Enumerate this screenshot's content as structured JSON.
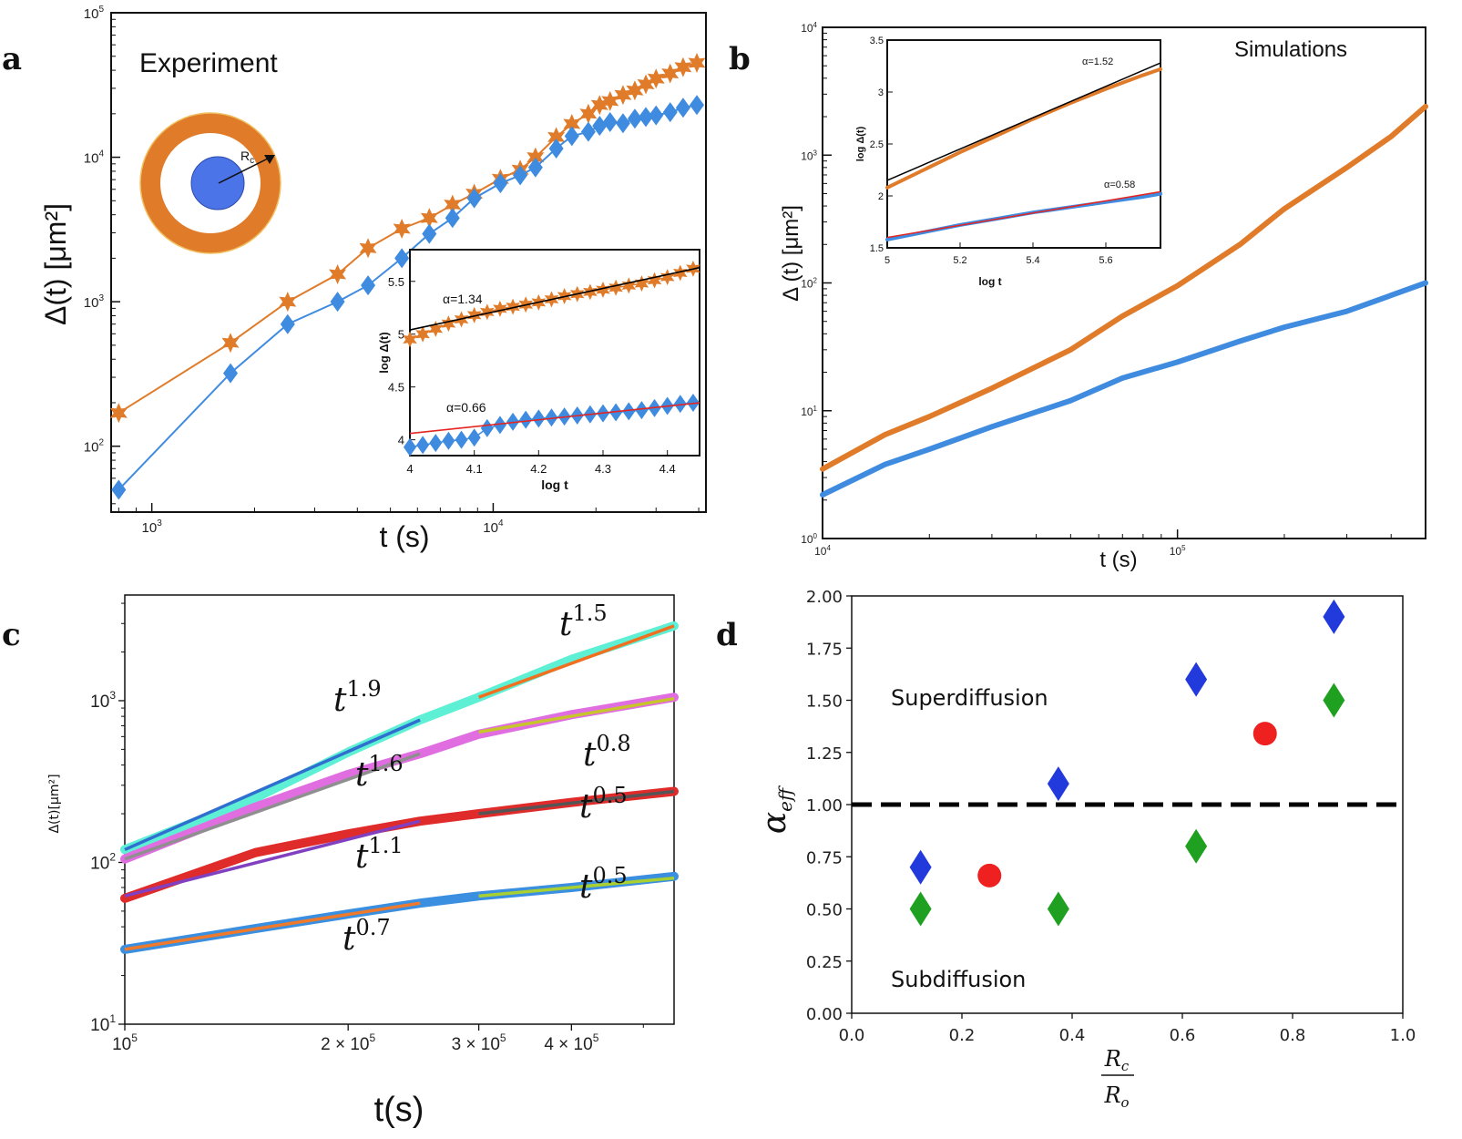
{
  "colors": {
    "orange": "#e07b2a",
    "blue": "#3f8be0",
    "black": "#000000",
    "red": "#e52420",
    "cyan": "#5ef0d5",
    "pink": "#e06ee0",
    "dred": "#e02b2b",
    "steel": "#3b8fe0",
    "diamond_blue": "#2239dc",
    "diamond_green": "#20a020",
    "dot_red": "#ee2020"
  },
  "panels": [
    {
      "letter": "a",
      "label": "Experiment",
      "xlabel": "t (s)",
      "ylabel": "Δ(t) [μm²]",
      "xticks": [
        {
          "v": 1000,
          "base": "10",
          "exp": "3"
        },
        {
          "v": 10000,
          "base": "10",
          "exp": "4"
        }
      ],
      "yticks": [
        {
          "v": 100,
          "base": "10",
          "exp": "2"
        },
        {
          "v": 1000,
          "base": "10",
          "exp": "3"
        },
        {
          "v": 10000,
          "base": "10",
          "exp": "4"
        },
        {
          "v": 100000,
          "base": "10",
          "exp": "5"
        }
      ],
      "schematic_label": "Rc",
      "inset": {
        "xlabel": "log t",
        "ylabel": "log Δ(t)",
        "xticks": [
          "4",
          "4.1",
          "4.2",
          "4.3",
          "4.4"
        ],
        "yticks": [
          "4",
          "4.5",
          "5",
          "5.5"
        ],
        "fit_labels": [
          "α=1.34",
          "α=0.66"
        ]
      }
    },
    {
      "letter": "b",
      "label": "Simulations",
      "xlabel": "t (s)",
      "ylabel": "Δ (t) [μm²]",
      "xticks": [
        {
          "v": 10000,
          "base": "10",
          "exp": "4"
        },
        {
          "v": 100000,
          "base": "10",
          "exp": "5"
        }
      ],
      "yticks": [
        {
          "v": 1,
          "base": "10",
          "exp": "0"
        },
        {
          "v": 10,
          "base": "10",
          "exp": "1"
        },
        {
          "v": 100,
          "base": "10",
          "exp": "2"
        },
        {
          "v": 1000,
          "base": "10",
          "exp": "3"
        },
        {
          "v": 10000,
          "base": "10",
          "exp": "4"
        }
      ],
      "inset": {
        "xlabel": "log t",
        "ylabel": "log Δ(t)",
        "xticks": [
          "5",
          "5.2",
          "5.4",
          "5.6"
        ],
        "yticks": [
          "1.5",
          "2",
          "2.5",
          "3",
          "3.5"
        ],
        "fit_labels": [
          "α=1.52",
          "α=0.58"
        ]
      }
    },
    {
      "letter": "c",
      "xlabel": "t(s)",
      "ylabel": "Δ(t)[μm²]",
      "xticks": [
        {
          "v": 100000,
          "text": "10",
          "exp": "5"
        },
        {
          "v": 200000,
          "text": "2 × 10",
          "exp": "5"
        },
        {
          "v": 300000,
          "text": "3 × 10",
          "exp": "5"
        },
        {
          "v": 400000,
          "text": "4 × 10",
          "exp": "5"
        }
      ],
      "yticks": [
        {
          "v": 10,
          "base": "10",
          "exp": "1"
        },
        {
          "v": 100,
          "base": "10",
          "exp": "2"
        },
        {
          "v": 1000,
          "base": "10",
          "exp": "3"
        }
      ],
      "annotations": [
        {
          "base": "t",
          "exp": "1.5"
        },
        {
          "base": "t",
          "exp": "1.9"
        },
        {
          "base": "t",
          "exp": "0.8"
        },
        {
          "base": "t",
          "exp": "1.6"
        },
        {
          "base": "t",
          "exp": "0.5"
        },
        {
          "base": "t",
          "exp": "1.1"
        },
        {
          "base": "t",
          "exp": "0.5"
        },
        {
          "base": "t",
          "exp": "0.7"
        }
      ]
    },
    {
      "letter": "d",
      "ylabel": "α",
      "ylabel_sub": "eff",
      "xlabel_num": "R",
      "xlabel_num_sub": "c",
      "xlabel_den": "R",
      "xlabel_den_sub": "o",
      "xticks": [
        "0.0",
        "0.2",
        "0.4",
        "0.6",
        "0.8",
        "1.0"
      ],
      "yticks": [
        "0.00",
        "0.25",
        "0.50",
        "0.75",
        "1.00",
        "1.25",
        "1.50",
        "1.75",
        "2.00"
      ],
      "region_labels": [
        "Superdiffusion",
        "Subdiffusion"
      ]
    }
  ],
  "chart_data": [
    {
      "type": "line",
      "panel": "a",
      "title": "Experiment",
      "xlabel": "t (s)",
      "ylabel": "Δ(t) [μm²]",
      "xscale": "log",
      "yscale": "log",
      "xlim": [
        760,
        42000
      ],
      "ylim": [
        35,
        100000
      ],
      "series": [
        {
          "color": "#e07b2a",
          "marker": "star",
          "x": [
            800,
            1700,
            2500,
            3500,
            4300,
            5400,
            6500,
            7600,
            8800,
            10500,
            12000,
            13300,
            15300,
            17000,
            19000,
            20500,
            22000,
            24000,
            26000,
            28000,
            30000,
            33000,
            36000,
            39500
          ],
          "y": [
            170,
            520,
            1000,
            1550,
            2350,
            3200,
            3800,
            4700,
            5600,
            7100,
            8200,
            10000,
            13800,
            17000,
            20000,
            23000,
            24500,
            27000,
            29000,
            32000,
            35000,
            38000,
            42000,
            45000
          ]
        },
        {
          "color": "#3f8be0",
          "marker": "diamond",
          "x": [
            800,
            1700,
            2500,
            3500,
            4300,
            5400,
            6500,
            7600,
            8800,
            10500,
            12000,
            13300,
            15300,
            17000,
            19000,
            20500,
            22000,
            24000,
            26000,
            28000,
            30000,
            33000,
            36000,
            39500
          ],
          "y": [
            50,
            320,
            700,
            1000,
            1300,
            2000,
            2950,
            3800,
            5200,
            6600,
            7500,
            8500,
            11500,
            14000,
            15000,
            16500,
            17500,
            17200,
            18500,
            19000,
            19500,
            20500,
            22000,
            23000
          ]
        }
      ],
      "inset": {
        "type": "line",
        "xlabel": "log t",
        "ylabel": "log Δ(t)",
        "xlim": [
          4.0,
          4.45
        ],
        "ylim": [
          3.85,
          5.8
        ],
        "series": [
          {
            "color": "#e07b2a",
            "marker": "star",
            "x": [
              4.0,
              4.02,
              4.04,
              4.06,
              4.08,
              4.1,
              4.12,
              4.14,
              4.16,
              4.18,
              4.2,
              4.22,
              4.24,
              4.26,
              4.28,
              4.3,
              4.32,
              4.34,
              4.36,
              4.38,
              4.4,
              4.42,
              4.44
            ],
            "y": [
              4.95,
              5.0,
              5.05,
              5.1,
              5.14,
              5.18,
              5.21,
              5.24,
              5.26,
              5.28,
              5.3,
              5.33,
              5.36,
              5.38,
              5.4,
              5.42,
              5.44,
              5.46,
              5.48,
              5.51,
              5.54,
              5.58,
              5.62
            ]
          },
          {
            "color": "#3f8be0",
            "marker": "diamond",
            "x": [
              4.0,
              4.02,
              4.04,
              4.06,
              4.08,
              4.1,
              4.12,
              4.14,
              4.16,
              4.18,
              4.2,
              4.22,
              4.24,
              4.26,
              4.28,
              4.3,
              4.32,
              4.34,
              4.36,
              4.38,
              4.4,
              4.42,
              4.44
            ],
            "y": [
              3.93,
              3.95,
              3.97,
              3.99,
              4.0,
              4.02,
              4.11,
              4.14,
              4.17,
              4.19,
              4.2,
              4.21,
              4.22,
              4.23,
              4.24,
              4.25,
              4.26,
              4.27,
              4.28,
              4.3,
              4.32,
              4.34,
              4.35
            ]
          }
        ],
        "fits": [
          {
            "label": "α=1.34",
            "color": "#000000",
            "x": [
              4.0,
              4.45
            ],
            "y": [
              5.04,
              5.63
            ]
          },
          {
            "label": "α=0.66",
            "color": "#e52420",
            "x": [
              4.0,
              4.45
            ],
            "y": [
              4.06,
              4.35
            ]
          }
        ]
      }
    },
    {
      "type": "line",
      "panel": "b",
      "title": "Simulations",
      "xlabel": "t (s)",
      "ylabel": "Δ (t) [μm²]",
      "xscale": "log",
      "yscale": "log",
      "xlim": [
        10000,
        500000
      ],
      "ylim": [
        1,
        10000
      ],
      "series": [
        {
          "color": "#e07b2a",
          "x": [
            10000,
            15000,
            20000,
            30000,
            50000,
            70000,
            100000,
            150000,
            200000,
            300000,
            400000,
            500000
          ],
          "y": [
            3.5,
            6.5,
            9,
            15,
            30,
            55,
            95,
            200,
            380,
            800,
            1400,
            2400
          ]
        },
        {
          "color": "#3f8be0",
          "x": [
            10000,
            15000,
            20000,
            30000,
            50000,
            70000,
            100000,
            150000,
            200000,
            300000,
            400000,
            500000
          ],
          "y": [
            2.2,
            3.8,
            5,
            7.5,
            12,
            18,
            24,
            35,
            45,
            60,
            80,
            100
          ]
        }
      ],
      "inset": {
        "type": "line",
        "xlabel": "log t",
        "ylabel": "log Δ(t)",
        "xlim": [
          5.0,
          5.75
        ],
        "ylim": [
          1.5,
          3.5
        ],
        "series": [
          {
            "color": "#e07b2a",
            "x": [
              5.0,
              5.1,
              5.2,
              5.3,
              5.4,
              5.5,
              5.6,
              5.7,
              5.75
            ],
            "y": [
              2.08,
              2.25,
              2.42,
              2.58,
              2.74,
              2.89,
              3.03,
              3.16,
              3.22
            ]
          },
          {
            "color": "#3f8be0",
            "x": [
              5.0,
              5.1,
              5.2,
              5.3,
              5.4,
              5.5,
              5.6,
              5.7,
              5.75
            ],
            "y": [
              1.58,
              1.65,
              1.72,
              1.78,
              1.84,
              1.89,
              1.94,
              1.99,
              2.02
            ]
          }
        ],
        "fits": [
          {
            "label": "α=1.52",
            "color": "#000000",
            "x": [
              5.0,
              5.75
            ],
            "y": [
              2.15,
              3.28
            ]
          },
          {
            "label": "α=0.58",
            "color": "#e52420",
            "x": [
              5.0,
              5.75
            ],
            "y": [
              1.6,
              2.04
            ]
          }
        ]
      }
    },
    {
      "type": "line",
      "panel": "c",
      "xlabel": "t(s)",
      "ylabel": "Δ(t)[μm²]",
      "xscale": "log",
      "yscale": "log",
      "xlim": [
        100000,
        550000
      ],
      "ylim": [
        10,
        4500
      ],
      "series": [
        {
          "color": "#5ef0d5",
          "width": 10,
          "x": [
            100000,
            150000,
            200000,
            250000,
            300000,
            400000,
            550000
          ],
          "y": [
            120,
            250,
            480,
            760,
            1050,
            1800,
            2900
          ]
        },
        {
          "color": "#e06ee0",
          "width": 10,
          "x": [
            100000,
            150000,
            200000,
            250000,
            300000,
            400000,
            550000
          ],
          "y": [
            105,
            220,
            350,
            470,
            620,
            820,
            1050
          ]
        },
        {
          "color": "#e02b2b",
          "width": 10,
          "x": [
            100000,
            150000,
            200000,
            250000,
            300000,
            400000,
            550000
          ],
          "y": [
            60,
            115,
            150,
            180,
            200,
            235,
            275
          ]
        },
        {
          "color": "#3b8fe0",
          "width": 10,
          "x": [
            100000,
            150000,
            200000,
            250000,
            300000,
            400000,
            550000
          ],
          "y": [
            29,
            39,
            48,
            56,
            62,
            70,
            82
          ]
        }
      ],
      "fits": [
        {
          "label": "t^1.9",
          "color": "#2f6fd0",
          "x": [
            100000,
            250000
          ],
          "y": [
            120,
            760
          ]
        },
        {
          "label": "t^1.5",
          "color": "#f07020",
          "x": [
            300000,
            550000
          ],
          "y": [
            1050,
            2900
          ]
        },
        {
          "label": "t^1.6",
          "color": "#8f8f8f",
          "x": [
            100000,
            250000
          ],
          "y": [
            105,
            470
          ]
        },
        {
          "label": "t^0.8",
          "color": "#c6c62a",
          "x": [
            300000,
            550000
          ],
          "y": [
            640,
            1030
          ]
        },
        {
          "label": "t^1.1",
          "color": "#8040c0",
          "x": [
            100000,
            250000
          ],
          "y": [
            62,
            180
          ]
        },
        {
          "label": "t^0.5",
          "color": "#555555",
          "x": [
            300000,
            550000
          ],
          "y": [
            200,
            275
          ]
        },
        {
          "label": "t^0.7",
          "color": "#f07a2a",
          "x": [
            100000,
            250000
          ],
          "y": [
            29,
            56
          ]
        },
        {
          "label": "t^0.5",
          "color": "#a8d030",
          "x": [
            300000,
            550000
          ],
          "y": [
            62,
            80
          ]
        }
      ]
    },
    {
      "type": "scatter",
      "panel": "d",
      "xlabel": "Rc/Ro",
      "ylabel": "αeff",
      "xlim": [
        0.0,
        1.0
      ],
      "ylim": [
        0.0,
        2.0
      ],
      "reference_line": {
        "y": 1.0,
        "style": "dashed",
        "color": "#000000"
      },
      "series": [
        {
          "color": "#2239dc",
          "marker": "diamond",
          "x": [
            0.125,
            0.375,
            0.625,
            0.875
          ],
          "y": [
            0.7,
            1.1,
            1.6,
            1.9
          ]
        },
        {
          "color": "#20a020",
          "marker": "diamond",
          "x": [
            0.125,
            0.375,
            0.625,
            0.875
          ],
          "y": [
            0.5,
            0.5,
            0.8,
            1.5
          ]
        },
        {
          "color": "#ee2020",
          "marker": "circle",
          "x": [
            0.25,
            0.75
          ],
          "y": [
            0.66,
            1.34
          ]
        }
      ]
    }
  ]
}
